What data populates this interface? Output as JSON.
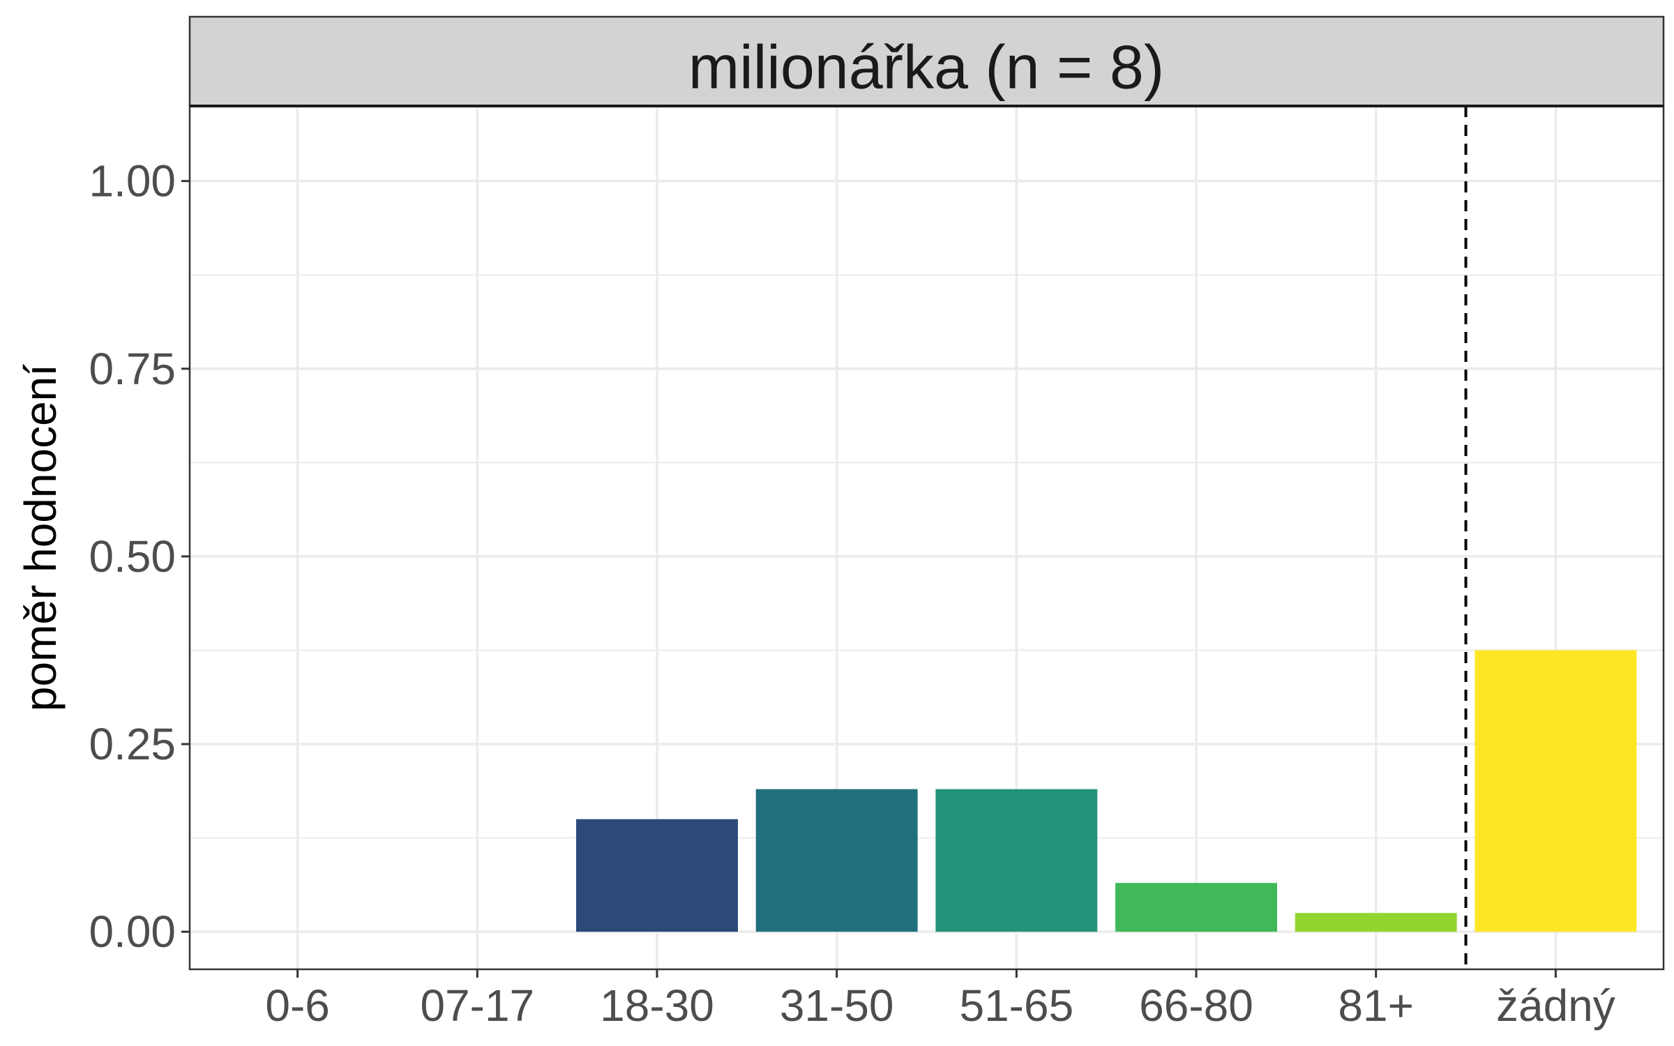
{
  "chart_data": {
    "type": "bar",
    "title": "milionářka (n = 8)",
    "xlabel": "",
    "ylabel": "poměr hodnocení",
    "categories": [
      "0-6",
      "07-17",
      "18-30",
      "31-50",
      "51-65",
      "66-80",
      "81+",
      "žádný"
    ],
    "values": [
      0.0,
      0.0,
      0.15,
      0.19,
      0.19,
      0.065,
      0.025,
      0.375
    ],
    "bar_colors": [
      "#440154",
      "#46337e",
      "#2b4a7a",
      "#216f7c",
      "#22937a",
      "#41b85a",
      "#91d42e",
      "#fde725"
    ],
    "ylim": [
      -0.05,
      1.1
    ],
    "yticks": [
      0.0,
      0.25,
      0.5,
      0.75,
      1.0
    ],
    "ytick_labels": [
      "0.00",
      "0.25",
      "0.50",
      "0.75",
      "1.00"
    ],
    "reference_line": {
      "between": [
        "81+",
        "žádný"
      ],
      "style": "dashed"
    },
    "grid": true,
    "legend": "none",
    "strip_color": "#d3d3d3"
  }
}
